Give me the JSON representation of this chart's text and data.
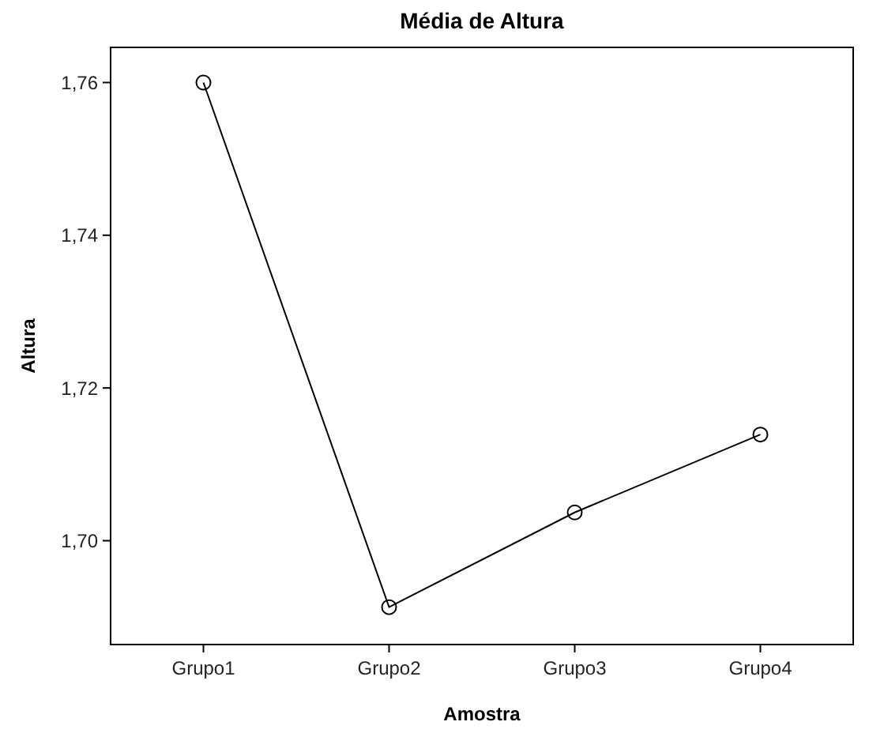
{
  "chart_data": {
    "type": "line",
    "title": "Média de Altura",
    "xlabel": "Amostra",
    "ylabel": "Altura",
    "categories": [
      "Grupo1",
      "Grupo2",
      "Grupo3",
      "Grupo4"
    ],
    "series": [
      {
        "color": "#000000",
        "values": [
          1.76,
          1.6913,
          1.7037,
          1.7139
        ]
      }
    ],
    "ylim": [
      1.6864,
      1.7646
    ],
    "yticks": [
      {
        "value": 1.7,
        "label": "1,70"
      },
      {
        "value": 1.72,
        "label": "1,72"
      },
      {
        "value": 1.74,
        "label": "1,74"
      },
      {
        "value": 1.76,
        "label": "1,76"
      }
    ],
    "marker": "circle",
    "line_style": "solid"
  }
}
